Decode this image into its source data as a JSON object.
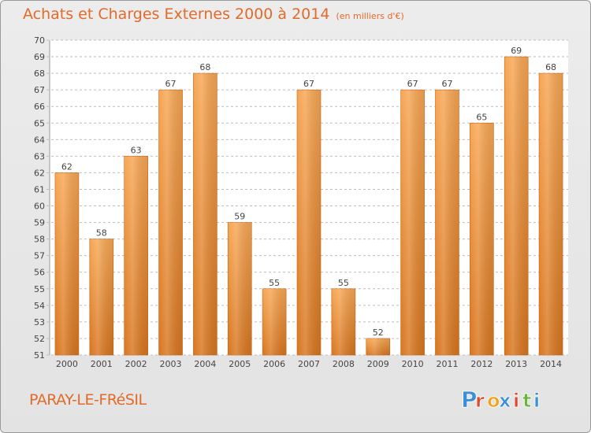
{
  "title": "Achats et Charges Externes 2000 à 2014",
  "subtitle": "(en milliers d'€)",
  "place": "PARAY-LE-FRéSIL",
  "logo": {
    "letters": [
      "P",
      "r",
      "o",
      "x",
      "i",
      "t",
      "i"
    ],
    "colors": [
      "#3a8fd8",
      "#e04a2a",
      "#f2a31b",
      "#3a8fd8",
      "#e04a2a",
      "#6cb33e",
      "#3a8fd8"
    ]
  },
  "colors": {
    "bar_top": "#f7a653",
    "bar_bottom": "#d8751e",
    "title": "#e26b2a",
    "grid": "#bdbdbd"
  },
  "chart_data": {
    "type": "bar",
    "categories": [
      "2000",
      "2001",
      "2002",
      "2003",
      "2004",
      "2005",
      "2006",
      "2007",
      "2008",
      "2009",
      "2010",
      "2011",
      "2012",
      "2013",
      "2014"
    ],
    "values": [
      62,
      58,
      63,
      67,
      68,
      59,
      55,
      67,
      55,
      52,
      67,
      67,
      65,
      69,
      68
    ],
    "ylim": [
      51,
      70
    ],
    "yticks": [
      51,
      52,
      53,
      54,
      55,
      56,
      57,
      58,
      59,
      60,
      61,
      62,
      63,
      64,
      65,
      66,
      67,
      68,
      69,
      70
    ],
    "grid": true,
    "data_labels": true
  }
}
